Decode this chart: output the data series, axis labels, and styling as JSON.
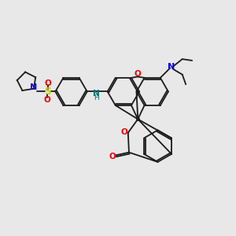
{
  "bg_color": "#e8e8e8",
  "bond_color": "#1a1a1a",
  "N_color": "#0000ee",
  "O_color": "#ee0000",
  "S_color": "#cccc00",
  "NH_color": "#007070",
  "lw": 1.3,
  "figsize": [
    3.0,
    3.0
  ],
  "dpi": 100,
  "xlim": [
    0,
    10
  ],
  "ylim": [
    0,
    10
  ]
}
